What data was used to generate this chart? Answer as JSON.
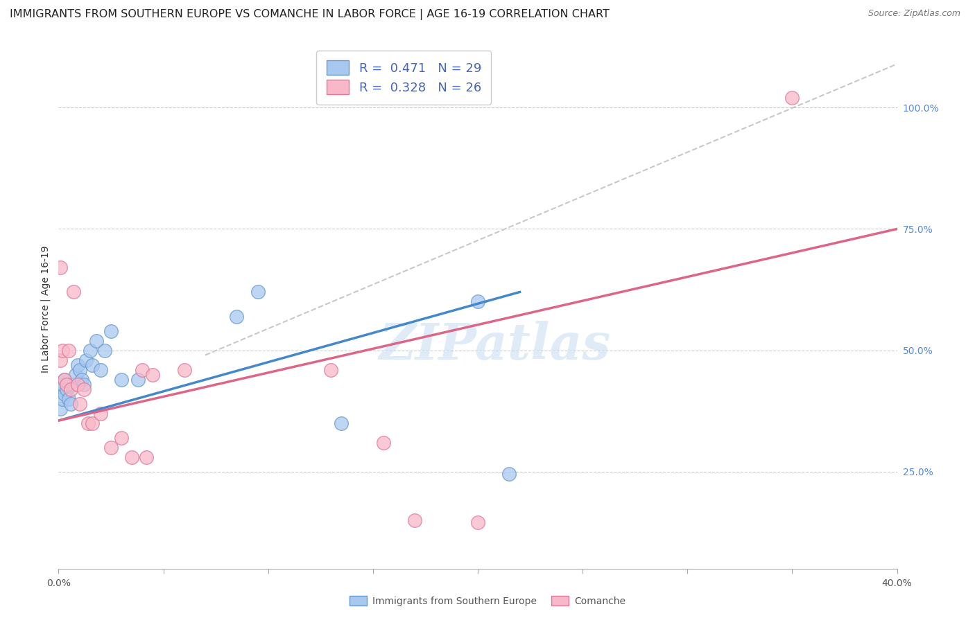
{
  "title": "IMMIGRANTS FROM SOUTHERN EUROPE VS COMANCHE IN LABOR FORCE | AGE 16-19 CORRELATION CHART",
  "source": "Source: ZipAtlas.com",
  "ylabel": "In Labor Force | Age 16-19",
  "xlim": [
    0.0,
    0.4
  ],
  "ylim": [
    0.05,
    1.12
  ],
  "right_yticks": [
    0.25,
    0.5,
    0.75,
    1.0
  ],
  "right_yticklabels": [
    "25.0%",
    "50.0%",
    "75.0%",
    "100.0%"
  ],
  "xticks": [
    0.0,
    0.05,
    0.1,
    0.15,
    0.2,
    0.25,
    0.3,
    0.35,
    0.4
  ],
  "blue_scatter_x": [
    0.001,
    0.001,
    0.002,
    0.002,
    0.003,
    0.003,
    0.004,
    0.005,
    0.006,
    0.007,
    0.008,
    0.009,
    0.01,
    0.011,
    0.012,
    0.013,
    0.015,
    0.016,
    0.018,
    0.02,
    0.022,
    0.025,
    0.03,
    0.038,
    0.085,
    0.095,
    0.135,
    0.2,
    0.215
  ],
  "blue_scatter_y": [
    0.38,
    0.42,
    0.4,
    0.43,
    0.41,
    0.44,
    0.42,
    0.4,
    0.39,
    0.43,
    0.45,
    0.47,
    0.46,
    0.44,
    0.43,
    0.48,
    0.5,
    0.47,
    0.52,
    0.46,
    0.5,
    0.54,
    0.44,
    0.44,
    0.57,
    0.62,
    0.35,
    0.6,
    0.245
  ],
  "pink_scatter_x": [
    0.001,
    0.001,
    0.002,
    0.003,
    0.004,
    0.005,
    0.006,
    0.007,
    0.009,
    0.01,
    0.012,
    0.014,
    0.016,
    0.02,
    0.025,
    0.03,
    0.035,
    0.04,
    0.042,
    0.045,
    0.06,
    0.13,
    0.155,
    0.17,
    0.2,
    0.35
  ],
  "pink_scatter_y": [
    0.67,
    0.48,
    0.5,
    0.44,
    0.43,
    0.5,
    0.42,
    0.62,
    0.43,
    0.39,
    0.42,
    0.35,
    0.35,
    0.37,
    0.3,
    0.32,
    0.28,
    0.46,
    0.28,
    0.45,
    0.46,
    0.46,
    0.31,
    0.15,
    0.145,
    1.02
  ],
  "blue_line_x": [
    0.0,
    0.22
  ],
  "blue_line_y": [
    0.355,
    0.62
  ],
  "pink_line_x": [
    0.0,
    0.4
  ],
  "pink_line_y": [
    0.355,
    0.75
  ],
  "gray_line_x": [
    0.07,
    0.4
  ],
  "gray_line_y": [
    0.49,
    1.09
  ],
  "blue_color": "#a8c8f0",
  "blue_edge": "#6699cc",
  "pink_color": "#f8b8c8",
  "pink_edge": "#dd7799",
  "blue_line_color": "#4488cc",
  "pink_line_color": "#dd6688",
  "gray_color": "#bbbbbb",
  "legend_label1": "Immigrants from Southern Europe",
  "legend_label2": "Comanche",
  "watermark": "ZIPatlas",
  "title_fontsize": 11.5,
  "axis_label_fontsize": 10,
  "tick_fontsize": 10
}
